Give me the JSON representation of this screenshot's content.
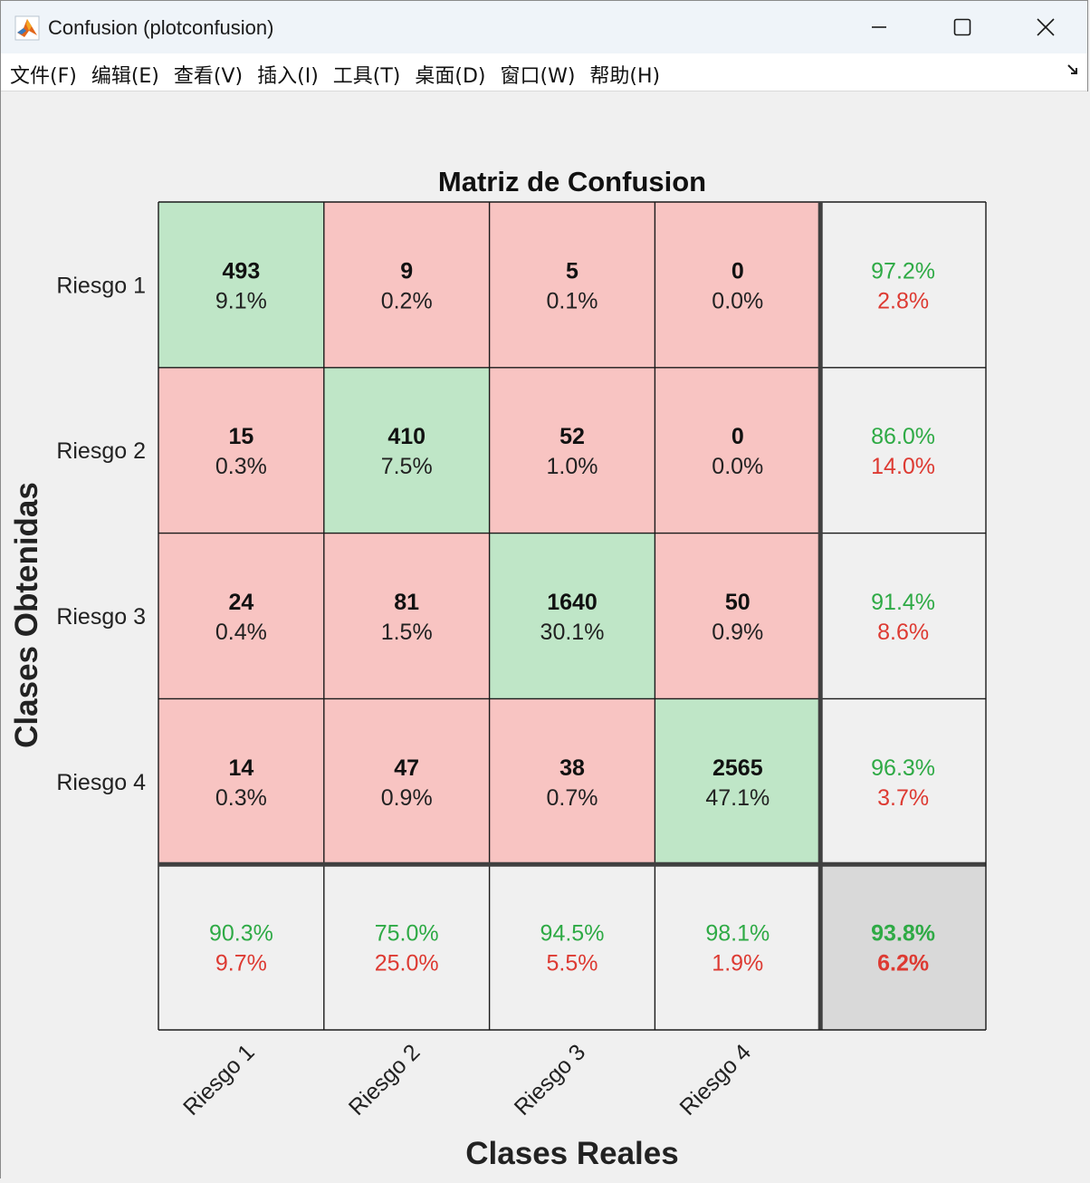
{
  "window": {
    "title": "Confusion (plotconfusion)",
    "icon": "matlab-icon"
  },
  "menu": {
    "items": [
      "文件(F)",
      "编辑(E)",
      "查看(V)",
      "插入(I)",
      "工具(T)",
      "桌面(D)",
      "窗口(W)",
      "帮助(H)"
    ]
  },
  "chart_data": {
    "type": "table",
    "title": "Matriz de Confusion",
    "xlabel": "Clases Reales",
    "ylabel": "Clases Obtenidas",
    "classes": [
      "Riesgo 1",
      "Riesgo 2",
      "Riesgo 3",
      "Riesgo 4"
    ],
    "counts": [
      [
        493,
        9,
        5,
        0
      ],
      [
        15,
        410,
        52,
        0
      ],
      [
        24,
        81,
        1640,
        50
      ],
      [
        14,
        47,
        38,
        2565
      ]
    ],
    "percents": [
      [
        "9.1%",
        "0.2%",
        "0.1%",
        "0.0%"
      ],
      [
        "0.3%",
        "7.5%",
        "1.0%",
        "0.0%"
      ],
      [
        "0.4%",
        "1.5%",
        "30.1%",
        "0.9%"
      ],
      [
        "0.3%",
        "0.9%",
        "0.7%",
        "47.1%"
      ]
    ],
    "row_summary": [
      {
        "correct": "97.2%",
        "error": "2.8%"
      },
      {
        "correct": "86.0%",
        "error": "14.0%"
      },
      {
        "correct": "91.4%",
        "error": "8.6%"
      },
      {
        "correct": "96.3%",
        "error": "3.7%"
      }
    ],
    "col_summary": [
      {
        "correct": "90.3%",
        "error": "9.7%"
      },
      {
        "correct": "75.0%",
        "error": "25.0%"
      },
      {
        "correct": "94.5%",
        "error": "5.5%"
      },
      {
        "correct": "98.1%",
        "error": "1.9%"
      }
    ],
    "overall": {
      "correct": "93.8%",
      "error": "6.2%"
    },
    "colors": {
      "diagonal": "#bfe6c7",
      "off_diagonal": "#f8c4c2",
      "summary": "#f0f0f0",
      "overall": "#d9d9d9",
      "correct_text": "#2eaa45",
      "error_text": "#dd3a32"
    }
  }
}
